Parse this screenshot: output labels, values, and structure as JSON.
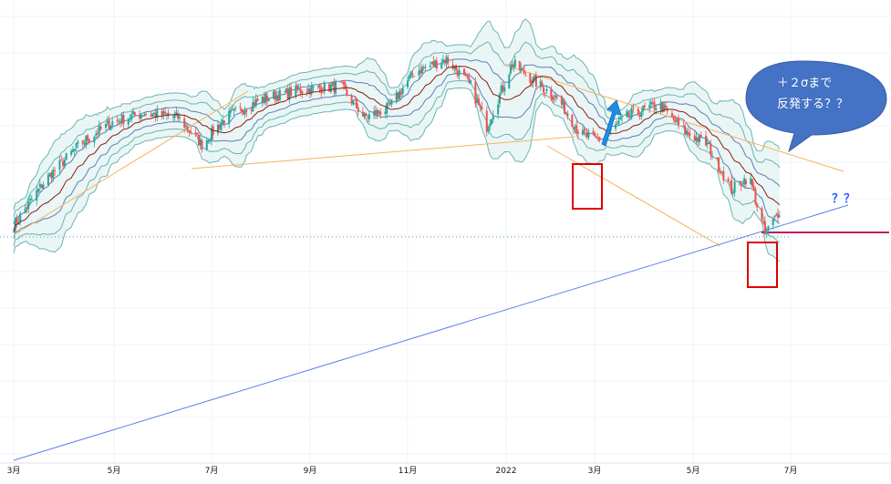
{
  "chart_data": {
    "type": "candlestick",
    "title": "",
    "x_tick_labels": [
      "3月",
      "5月",
      "7月",
      "9月",
      "11月",
      "2022",
      "3月",
      "5月",
      "7月"
    ],
    "x_ticks": [
      "2021-03",
      "2021-05",
      "2021-07",
      "2021-09",
      "2021-11",
      "2022-01",
      "2022-03",
      "2022-05",
      "2022-07"
    ],
    "ylim": [
      0,
      100
    ],
    "ohlc_note": "Approximate relative price path read from the chart (no price axis printed).",
    "price_path": [
      [
        "2021-03-01",
        52
      ],
      [
        "2021-03-20",
        62
      ],
      [
        "2021-04-10",
        70
      ],
      [
        "2021-04-30",
        75
      ],
      [
        "2021-05-20",
        77
      ],
      [
        "2021-06-10",
        76
      ],
      [
        "2021-06-25",
        70
      ],
      [
        "2021-07-10",
        76
      ],
      [
        "2021-08-01",
        80
      ],
      [
        "2021-08-25",
        82
      ],
      [
        "2021-09-20",
        83
      ],
      [
        "2021-10-05",
        76
      ],
      [
        "2021-10-20",
        78
      ],
      [
        "2021-11-05",
        86
      ],
      [
        "2021-11-25",
        89
      ],
      [
        "2021-12-10",
        83
      ],
      [
        "2021-12-20",
        74
      ],
      [
        "2022-01-05",
        88
      ],
      [
        "2022-01-20",
        84
      ],
      [
        "2022-02-05",
        80
      ],
      [
        "2022-02-20",
        72
      ],
      [
        "2022-03-05",
        71
      ],
      [
        "2022-03-20",
        76
      ],
      [
        "2022-04-10",
        79
      ],
      [
        "2022-04-25",
        73
      ],
      [
        "2022-05-10",
        70
      ],
      [
        "2022-05-25",
        60
      ],
      [
        "2022-06-05",
        63
      ],
      [
        "2022-06-15",
        50
      ],
      [
        "2022-06-25",
        56
      ]
    ],
    "indicators": [
      "Bollinger Bands ±1σ, ±2σ, ±3σ",
      "Moving average"
    ],
    "annotations": {
      "bubble_text_line1": "＋２σまで",
      "bubble_text_line2": "反発する？？",
      "question_marks": "？？"
    },
    "colors": {
      "up_candle": "#26a69a",
      "down_candle": "#ef5350",
      "band_fill": "#d9efed",
      "band_line": "#4aa3a0",
      "ma_line": "#8b1a1a",
      "trend_orange": "#f7b35c",
      "trend_blue": "#5b83e6",
      "hline_magenta": "#c2185b",
      "marker_box": "#e00000",
      "arrow": "#1e8fe0",
      "bubble": "#4472c4"
    }
  }
}
